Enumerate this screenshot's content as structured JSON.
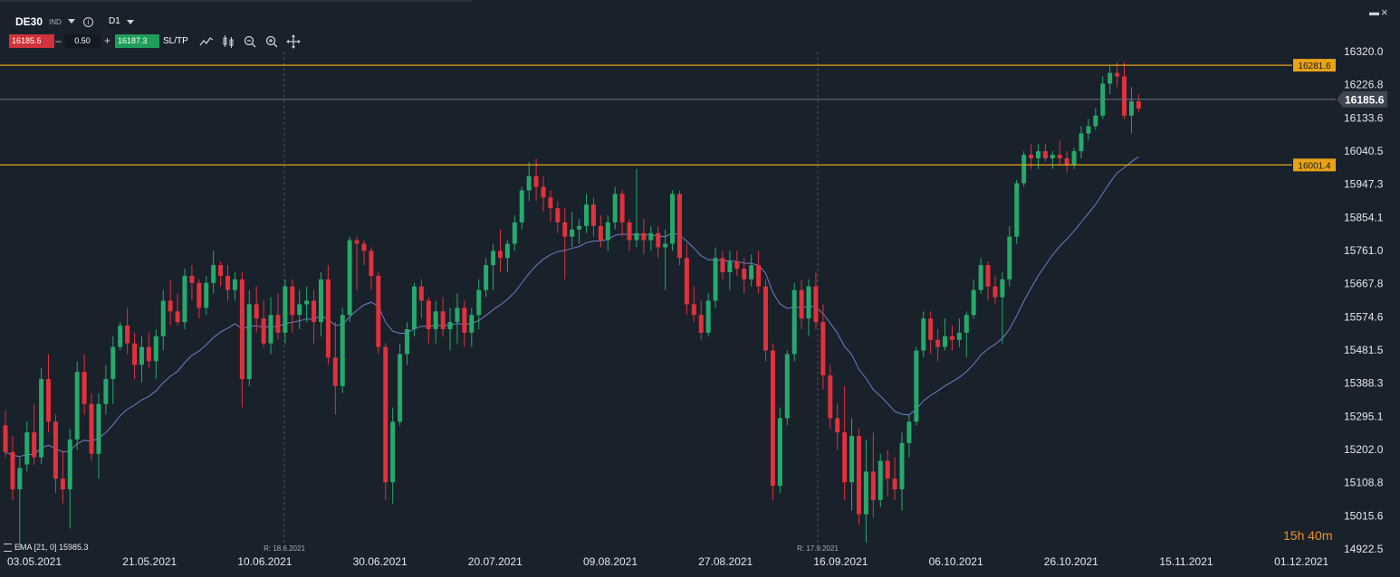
{
  "toolbar": {
    "symbol": "DE30",
    "instrument_type": "IND",
    "timeframe": "D1",
    "sell_price": "16185.6",
    "quantity": "0.50",
    "buy_price": "16187.3",
    "sltp_label": "SL/TP",
    "minus": "–",
    "plus": "+"
  },
  "price_axis": [
    "16320.0",
    "16226.8",
    "16133.6",
    "16040.5",
    "15947.3",
    "15854.1",
    "15761.0",
    "15667.8",
    "15574.6",
    "15481.5",
    "15388.3",
    "15295.1",
    "15202.0",
    "15108.8",
    "15015.6",
    "14922.5"
  ],
  "date_axis": [
    "03.05.2021",
    "21.05.2021",
    "10.06.2021",
    "30.06.2021",
    "20.07.2021",
    "09.08.2021",
    "27.08.2021",
    "16.09.2021",
    "06.10.2021",
    "26.10.2021",
    "15.11.2021",
    "01.12.2021"
  ],
  "levels": {
    "upper": "16281.6",
    "lower": "16001.4",
    "current": "16185.6"
  },
  "rollovers": [
    "R: 18.6.2021",
    "R: 17.9.2021"
  ],
  "indicator": "EMA [21, 0] 15985.3",
  "countdown": "15h 40m",
  "colors": {
    "up": "#26a96c",
    "down": "#e0313d",
    "level": "#e8a317",
    "ema": "#6f7fc4",
    "current_line": "#6b7785"
  },
  "chart_data": {
    "type": "candlestick",
    "timeframe": "D1",
    "ylim": [
      14922.5,
      16320.0
    ],
    "levels": [
      16281.6,
      16001.4
    ],
    "current_price": 16185.6,
    "ema_period": 21,
    "ema_last": 15985.3,
    "candles": [
      [
        15270,
        15310,
        15180,
        15195
      ],
      [
        15195,
        15240,
        15060,
        15090
      ],
      [
        15090,
        15180,
        14920,
        15150
      ],
      [
        15160,
        15280,
        15140,
        15250
      ],
      [
        15250,
        15330,
        15160,
        15180
      ],
      [
        15180,
        15430,
        15160,
        15400
      ],
      [
        15400,
        15470,
        15250,
        15280
      ],
      [
        15280,
        15300,
        15080,
        15120
      ],
      [
        15120,
        15200,
        15050,
        15090
      ],
      [
        15090,
        15260,
        14980,
        15230
      ],
      [
        15230,
        15450,
        15200,
        15420
      ],
      [
        15420,
        15470,
        15300,
        15330
      ],
      [
        15330,
        15360,
        15170,
        15190
      ],
      [
        15190,
        15360,
        15120,
        15330
      ],
      [
        15330,
        15440,
        15300,
        15400
      ],
      [
        15400,
        15520,
        15330,
        15490
      ],
      [
        15490,
        15560,
        15480,
        15550
      ],
      [
        15550,
        15600,
        15470,
        15500
      ],
      [
        15500,
        15530,
        15400,
        15440
      ],
      [
        15440,
        15520,
        15390,
        15490
      ],
      [
        15490,
        15530,
        15430,
        15450
      ],
      [
        15450,
        15540,
        15400,
        15520
      ],
      [
        15520,
        15650,
        15480,
        15620
      ],
      [
        15620,
        15680,
        15550,
        15590
      ],
      [
        15590,
        15640,
        15550,
        15560
      ],
      [
        15560,
        15710,
        15540,
        15690
      ],
      [
        15690,
        15720,
        15620,
        15670
      ],
      [
        15670,
        15680,
        15570,
        15600
      ],
      [
        15600,
        15690,
        15580,
        15670
      ],
      [
        15670,
        15760,
        15640,
        15720
      ],
      [
        15720,
        15730,
        15660,
        15690
      ],
      [
        15690,
        15720,
        15620,
        15650
      ],
      [
        15650,
        15700,
        15620,
        15680
      ],
      [
        15680,
        15700,
        15320,
        15400
      ],
      [
        15400,
        15650,
        15380,
        15610
      ],
      [
        15610,
        15660,
        15530,
        15570
      ],
      [
        15570,
        15620,
        15490,
        15500
      ],
      [
        15500,
        15630,
        15470,
        15580
      ],
      [
        15580,
        15640,
        15510,
        15530
      ],
      [
        15530,
        15680,
        15500,
        15660
      ],
      [
        15660,
        15680,
        15530,
        15580
      ],
      [
        15580,
        15650,
        15540,
        15610
      ],
      [
        15610,
        15660,
        15560,
        15620
      ],
      [
        15620,
        15650,
        15500,
        15560
      ],
      [
        15560,
        15700,
        15520,
        15680
      ],
      [
        15680,
        15720,
        15440,
        15460
      ],
      [
        15460,
        15560,
        15300,
        15380
      ],
      [
        15380,
        15600,
        15360,
        15580
      ],
      [
        15580,
        15800,
        15560,
        15790
      ],
      [
        15790,
        15800,
        15650,
        15780
      ],
      [
        15780,
        15790,
        15720,
        15760
      ],
      [
        15760,
        15770,
        15650,
        15690
      ],
      [
        15690,
        15700,
        15470,
        15490
      ],
      [
        15490,
        15500,
        15060,
        15110
      ],
      [
        15110,
        15320,
        15050,
        15280
      ],
      [
        15280,
        15500,
        15270,
        15470
      ],
      [
        15470,
        15560,
        15440,
        15540
      ],
      [
        15540,
        15670,
        15520,
        15660
      ],
      [
        15660,
        15680,
        15570,
        15620
      ],
      [
        15620,
        15630,
        15500,
        15540
      ],
      [
        15540,
        15620,
        15500,
        15590
      ],
      [
        15590,
        15630,
        15520,
        15540
      ],
      [
        15540,
        15600,
        15480,
        15560
      ],
      [
        15560,
        15640,
        15500,
        15600
      ],
      [
        15600,
        15620,
        15490,
        15530
      ],
      [
        15530,
        15600,
        15490,
        15580
      ],
      [
        15580,
        15680,
        15540,
        15650
      ],
      [
        15650,
        15740,
        15630,
        15720
      ],
      [
        15720,
        15780,
        15650,
        15760
      ],
      [
        15760,
        15820,
        15700,
        15740
      ],
      [
        15740,
        15790,
        15700,
        15780
      ],
      [
        15780,
        15860,
        15760,
        15840
      ],
      [
        15840,
        15940,
        15820,
        15930
      ],
      [
        15930,
        16010,
        15900,
        15970
      ],
      [
        15970,
        16020,
        15900,
        15940
      ],
      [
        15940,
        15970,
        15870,
        15910
      ],
      [
        15910,
        15930,
        15840,
        15880
      ],
      [
        15880,
        15900,
        15810,
        15840
      ],
      [
        15840,
        15880,
        15680,
        15800
      ],
      [
        15800,
        15870,
        15770,
        15820
      ],
      [
        15820,
        15850,
        15780,
        15830
      ],
      [
        15830,
        15920,
        15810,
        15890
      ],
      [
        15890,
        15910,
        15800,
        15830
      ],
      [
        15830,
        15860,
        15770,
        15790
      ],
      [
        15790,
        15860,
        15760,
        15840
      ],
      [
        15840,
        15940,
        15820,
        15920
      ],
      [
        15920,
        15930,
        15800,
        15840
      ],
      [
        15840,
        15850,
        15760,
        15790
      ],
      [
        15790,
        15990,
        15770,
        15810
      ],
      [
        15810,
        15850,
        15750,
        15790
      ],
      [
        15790,
        15830,
        15760,
        15810
      ],
      [
        15810,
        15830,
        15740,
        15770
      ],
      [
        15770,
        15820,
        15650,
        15780
      ],
      [
        15780,
        15930,
        15760,
        15920
      ],
      [
        15920,
        15930,
        15720,
        15740
      ],
      [
        15740,
        15780,
        15580,
        15610
      ],
      [
        15610,
        15660,
        15560,
        15580
      ],
      [
        15580,
        15620,
        15510,
        15530
      ],
      [
        15530,
        15640,
        15520,
        15620
      ],
      [
        15620,
        15770,
        15600,
        15740
      ],
      [
        15740,
        15760,
        15680,
        15700
      ],
      [
        15700,
        15760,
        15650,
        15730
      ],
      [
        15730,
        15760,
        15690,
        15710
      ],
      [
        15710,
        15740,
        15640,
        15680
      ],
      [
        15680,
        15750,
        15660,
        15720
      ],
      [
        15720,
        15760,
        15640,
        15660
      ],
      [
        15660,
        15680,
        15450,
        15480
      ],
      [
        15480,
        15500,
        15060,
        15100
      ],
      [
        15100,
        15320,
        15080,
        15290
      ],
      [
        15290,
        15480,
        15270,
        15470
      ],
      [
        15470,
        15670,
        15450,
        15650
      ],
      [
        15650,
        15680,
        15540,
        15570
      ],
      [
        15570,
        15680,
        15520,
        15660
      ],
      [
        15660,
        15700,
        15540,
        15560
      ],
      [
        15560,
        15610,
        15370,
        15410
      ],
      [
        15410,
        15440,
        15260,
        15290
      ],
      [
        15290,
        15330,
        15200,
        15250
      ],
      [
        15250,
        15380,
        15060,
        15110
      ],
      [
        15110,
        15290,
        15030,
        15240
      ],
      [
        15240,
        15260,
        14990,
        15020
      ],
      [
        15020,
        15230,
        14940,
        15140
      ],
      [
        15140,
        15250,
        15010,
        15060
      ],
      [
        15060,
        15190,
        15040,
        15170
      ],
      [
        15170,
        15200,
        15070,
        15120
      ],
      [
        15120,
        15180,
        15060,
        15090
      ],
      [
        15090,
        15250,
        15030,
        15220
      ],
      [
        15220,
        15300,
        15180,
        15280
      ],
      [
        15280,
        15490,
        15270,
        15480
      ],
      [
        15480,
        15590,
        15460,
        15570
      ],
      [
        15570,
        15590,
        15470,
        15510
      ],
      [
        15510,
        15540,
        15450,
        15490
      ],
      [
        15490,
        15570,
        15480,
        15520
      ],
      [
        15520,
        15550,
        15480,
        15510
      ],
      [
        15510,
        15570,
        15490,
        15530
      ],
      [
        15530,
        15590,
        15460,
        15580
      ],
      [
        15580,
        15680,
        15570,
        15650
      ],
      [
        15650,
        15740,
        15640,
        15720
      ],
      [
        15720,
        15730,
        15620,
        15660
      ],
      [
        15660,
        15690,
        15610,
        15630
      ],
      [
        15630,
        15700,
        15500,
        15680
      ],
      [
        15680,
        15830,
        15660,
        15800
      ],
      [
        15800,
        15960,
        15780,
        15950
      ],
      [
        15950,
        16040,
        15940,
        16030
      ],
      [
        16030,
        16060,
        15990,
        16020
      ],
      [
        16020,
        16060,
        15990,
        16040
      ],
      [
        16040,
        16060,
        16010,
        16020
      ],
      [
        16020,
        16040,
        15990,
        16030
      ],
      [
        16030,
        16070,
        16000,
        16020
      ],
      [
        16020,
        16040,
        15980,
        16000
      ],
      [
        16000,
        16050,
        15990,
        16040
      ],
      [
        16040,
        16110,
        16020,
        16090
      ],
      [
        16090,
        16130,
        16070,
        16110
      ],
      [
        16110,
        16160,
        16100,
        16140
      ],
      [
        16140,
        16250,
        16130,
        16230
      ],
      [
        16230,
        16280,
        16200,
        16260
      ],
      [
        16260,
        16290,
        16220,
        16250
      ],
      [
        16250,
        16290,
        16130,
        16140
      ],
      [
        16140,
        16220,
        16090,
        16180
      ],
      [
        16180,
        16200,
        16150,
        16160
      ]
    ]
  }
}
